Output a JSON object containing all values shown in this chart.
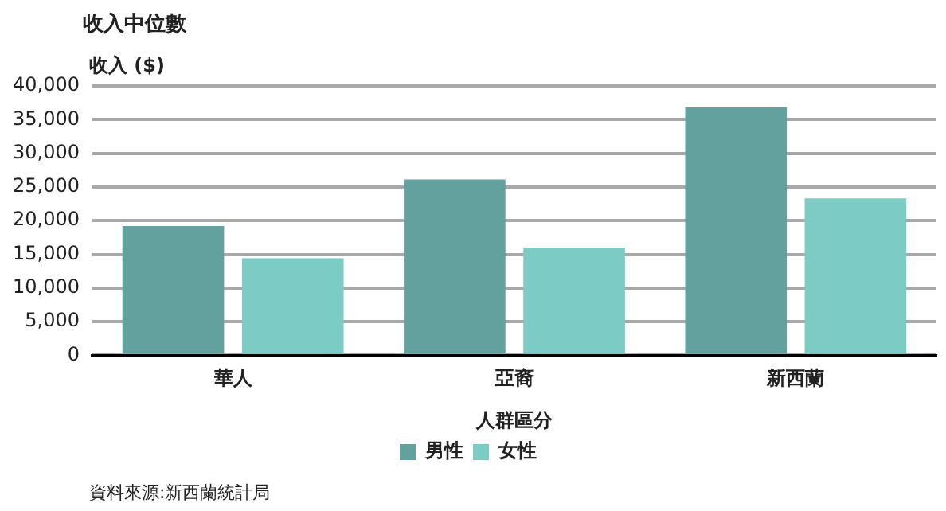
{
  "chart_data": {
    "type": "bar",
    "title": "收入中位數",
    "ylabel": "收入 ($)",
    "xlabel": "人群區分",
    "categories": [
      "華人",
      "亞裔",
      "新西蘭"
    ],
    "series": [
      {
        "name": "男性",
        "color": "#63a19f",
        "values": [
          19200,
          26100,
          36800
        ]
      },
      {
        "name": "女性",
        "color": "#7ccbc5",
        "values": [
          14400,
          16000,
          23300
        ]
      }
    ],
    "ylim": [
      0,
      40000
    ],
    "yticks": [
      0,
      {
        "value": 5000,
        "label": "5,000"
      },
      {
        "value": 10000,
        "label": "10,000"
      },
      {
        "value": 15000,
        "label": "15,000"
      },
      {
        "value": 20000,
        "label": "20,000"
      },
      {
        "value": 25000,
        "label": "25,000"
      },
      {
        "value": 30000,
        "label": "30,000"
      },
      {
        "value": 35000,
        "label": "35,000"
      },
      {
        "value": 40000,
        "label": "40,000"
      }
    ],
    "grid": "y",
    "legend": "bottom",
    "annotations": [
      "資料來源:新西蘭統計局"
    ]
  }
}
